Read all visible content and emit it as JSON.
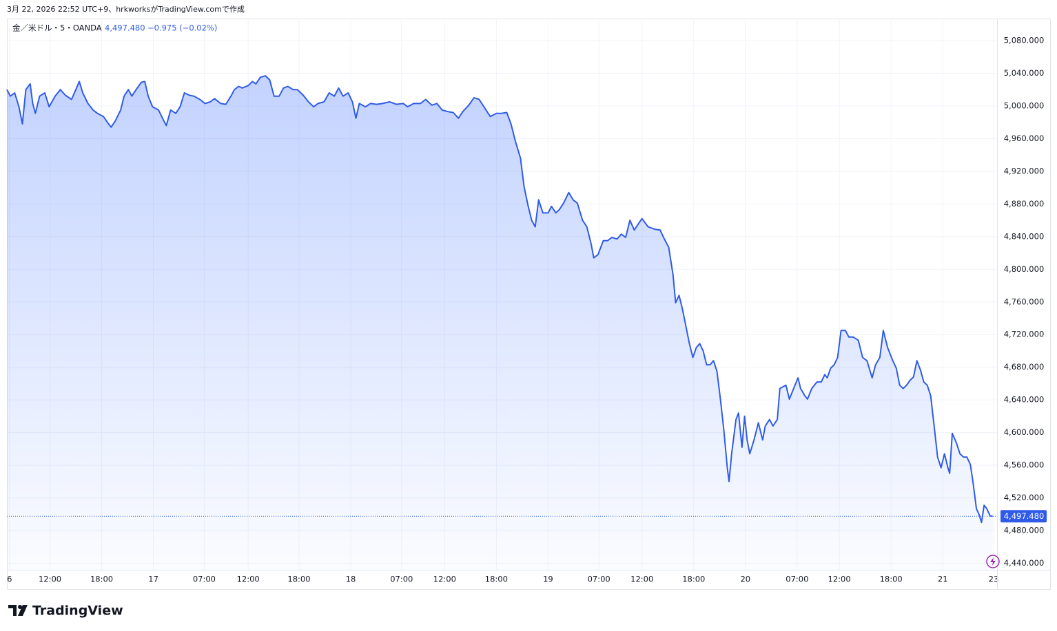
{
  "header": {
    "created": "3月 22, 2026 22:52 UTC+9、hrkworksがTradingView.comで作成"
  },
  "brand": "TradingView",
  "chart_data": {
    "type": "area",
    "title": "金／米ドル・5・OANDA",
    "last_price": {
      "value": 4497.48,
      "label": "4,497.480"
    },
    "change": "−0.975 (−0.02%)",
    "color": "#2f5be8",
    "grid": true,
    "xlim": [
      -0.3,
      114.6
    ],
    "xticks": [
      {
        "value": 0,
        "label": "6"
      },
      {
        "value": 4.7,
        "label": "12:00"
      },
      {
        "value": 10.7,
        "label": "18:00"
      },
      {
        "value": 16.7,
        "label": "17"
      },
      {
        "value": 22.6,
        "label": "07:00"
      },
      {
        "value": 27.7,
        "label": "12:00"
      },
      {
        "value": 33.6,
        "label": "18:00"
      },
      {
        "value": 39.6,
        "label": "18"
      },
      {
        "value": 45.5,
        "label": "07:00"
      },
      {
        "value": 50.5,
        "label": "12:00"
      },
      {
        "value": 56.5,
        "label": "18:00"
      },
      {
        "value": 62.5,
        "label": "19"
      },
      {
        "value": 68.4,
        "label": "07:00"
      },
      {
        "value": 73.4,
        "label": "12:00"
      },
      {
        "value": 79.4,
        "label": "18:00"
      },
      {
        "value": 85.4,
        "label": "20"
      },
      {
        "value": 91.4,
        "label": "07:00"
      },
      {
        "value": 96.3,
        "label": "12:00"
      },
      {
        "value": 102.3,
        "label": "18:00"
      },
      {
        "value": 108.3,
        "label": "21"
      },
      {
        "value": 114.2,
        "label": "23"
      }
    ],
    "ylim": [
      4432,
      5107
    ],
    "yticks": [
      {
        "value": 4440,
        "label": "4,440.000"
      },
      {
        "value": 4480,
        "label": "4,480.000"
      },
      {
        "value": 4520,
        "label": "4,520.000"
      },
      {
        "value": 4560,
        "label": "4,560.000"
      },
      {
        "value": 4600,
        "label": "4,600.000"
      },
      {
        "value": 4640,
        "label": "4,640.000"
      },
      {
        "value": 4680,
        "label": "4,680.000"
      },
      {
        "value": 4720,
        "label": "4,720.000"
      },
      {
        "value": 4760,
        "label": "4,760.000"
      },
      {
        "value": 4800,
        "label": "4,800.000"
      },
      {
        "value": 4840,
        "label": "4,840.000"
      },
      {
        "value": 4880,
        "label": "4,880.000"
      },
      {
        "value": 4920,
        "label": "4,920.000"
      },
      {
        "value": 4960,
        "label": "4,960.000"
      },
      {
        "value": 5000,
        "label": "5,000.000"
      },
      {
        "value": 5040,
        "label": "5,040.000"
      },
      {
        "value": 5080,
        "label": "5,080.000"
      }
    ],
    "x": [
      -0.3,
      0.1,
      0.6,
      1.1,
      1.5,
      1.9,
      2.4,
      2.7,
      3.0,
      3.5,
      4.1,
      4.6,
      5.3,
      5.9,
      6.5,
      7.2,
      7.7,
      8.1,
      8.5,
      9.1,
      9.7,
      10.2,
      10.9,
      11.5,
      11.8,
      12.3,
      12.9,
      13.3,
      13.8,
      14.2,
      14.7,
      15.3,
      15.7,
      16.1,
      16.6,
      17.3,
      17.9,
      18.2,
      18.7,
      19.3,
      19.8,
      20.3,
      20.9,
      21.4,
      22.1,
      22.7,
      23.3,
      23.8,
      24.5,
      25.1,
      25.7,
      26.1,
      26.6,
      27.0,
      27.7,
      28.2,
      28.6,
      29.1,
      29.7,
      30.2,
      30.7,
      31.3,
      31.8,
      32.3,
      32.9,
      33.4,
      34.1,
      34.7,
      35.3,
      35.8,
      36.5,
      37.1,
      37.7,
      38.2,
      38.7,
      39.3,
      39.8,
      40.2,
      40.6,
      41.3,
      41.9,
      42.6,
      43.3,
      44.1,
      44.9,
      45.7,
      46.2,
      46.9,
      47.7,
      48.3,
      49.0,
      49.6,
      50.2,
      50.9,
      51.5,
      52.1,
      52.6,
      53.3,
      53.9,
      54.5,
      55.3,
      55.8,
      56.5,
      57.1,
      57.7,
      58.2,
      58.7,
      59.3,
      59.7,
      60.2,
      60.6,
      61.0,
      61.4,
      61.9,
      62.5,
      62.9,
      63.4,
      63.8,
      64.3,
      64.9,
      65.4,
      65.9,
      66.5,
      67.0,
      67.5,
      67.8,
      68.3,
      68.9,
      69.4,
      69.9,
      70.5,
      71.0,
      71.5,
      72.0,
      72.5,
      73.0,
      73.4,
      74.1,
      74.9,
      75.5,
      76.0,
      76.5,
      77.0,
      77.3,
      77.7,
      78.1,
      78.5,
      78.9,
      79.3,
      79.7,
      80.1,
      80.5,
      80.9,
      81.3,
      81.7,
      82.1,
      82.5,
      82.9,
      83.3,
      83.5,
      83.8,
      84.3,
      84.6,
      85.0,
      85.3,
      85.6,
      85.9,
      86.4,
      86.9,
      87.4,
      87.7,
      88.2,
      88.6,
      89.1,
      89.4,
      90.1,
      90.5,
      91.0,
      91.5,
      91.8,
      92.3,
      92.6,
      93.1,
      93.7,
      94.2,
      94.6,
      94.9,
      95.3,
      95.7,
      96.1,
      96.5,
      97.0,
      97.4,
      97.9,
      98.5,
      99.0,
      99.5,
      100.1,
      100.5,
      101.0,
      101.4,
      101.9,
      102.5,
      102.9,
      103.3,
      103.7,
      104.1,
      104.5,
      104.9,
      105.3,
      105.7,
      106.1,
      106.5,
      106.9,
      107.3,
      107.7,
      108.1,
      108.5,
      108.9,
      109.1,
      109.4,
      109.9,
      110.3,
      110.7,
      111.1,
      111.5,
      111.8,
      112.2,
      112.5,
      112.8,
      113.1,
      113.4,
      113.8,
      114.1
    ],
    "values": [
      5020,
      5012,
      5016,
      4999,
      4978,
      5020,
      5027,
      5003,
      4991,
      5012,
      5016,
      4999,
      5012,
      5020,
      5013,
      5008,
      5020,
      5030,
      5016,
      5003,
      4995,
      4991,
      4987,
      4978,
      4974,
      4982,
      4995,
      5012,
      5020,
      5012,
      5020,
      5029,
      5030,
      5012,
      4999,
      4995,
      4982,
      4976,
      4995,
      4991,
      4999,
      5016,
      5013,
      5012,
      5008,
      5003,
      5005,
      5009,
      5003,
      5002,
      5012,
      5020,
      5024,
      5022,
      5025,
      5030,
      5027,
      5035,
      5037,
      5032,
      5012,
      5012,
      5022,
      5024,
      5020,
      5020,
      5013,
      5005,
      4999,
      5003,
      5005,
      5016,
      5012,
      5022,
      5012,
      5016,
      5005,
      4985,
      5003,
      4999,
      5003,
      5002,
      5003,
      5005,
      5002,
      5003,
      4999,
      5003,
      5003,
      5008,
      5001,
      5003,
      4995,
      4993,
      4992,
      4985,
      4993,
      5001,
      5010,
      5008,
      4995,
      4987,
      4991,
      4991,
      4992,
      4978,
      4957,
      4936,
      4902,
      4877,
      4860,
      4852,
      4885,
      4869,
      4869,
      4877,
      4869,
      4873,
      4881,
      4894,
      4885,
      4881,
      4860,
      4852,
      4831,
      4814,
      4818,
      4835,
      4835,
      4839,
      4837,
      4843,
      4839,
      4860,
      4848,
      4856,
      4862,
      4852,
      4849,
      4848,
      4837,
      4827,
      4793,
      4759,
      4768,
      4751,
      4730,
      4709,
      4692,
      4704,
      4709,
      4700,
      4683,
      4683,
      4688,
      4675,
      4641,
      4603,
      4557,
      4540,
      4574,
      4616,
      4624,
      4582,
      4620,
      4591,
      4574,
      4591,
      4612,
      4591,
      4608,
      4616,
      4608,
      4616,
      4654,
      4658,
      4641,
      4654,
      4667,
      4654,
      4645,
      4641,
      4654,
      4662,
      4662,
      4671,
      4667,
      4679,
      4683,
      4692,
      4725,
      4725,
      4717,
      4717,
      4713,
      4692,
      4688,
      4667,
      4683,
      4692,
      4725,
      4704,
      4688,
      4679,
      4658,
      4654,
      4658,
      4664,
      4668,
      4688,
      4677,
      4662,
      4658,
      4645,
      4608,
      4570,
      4557,
      4574,
      4557,
      4550,
      4599,
      4587,
      4574,
      4570,
      4570,
      4561,
      4540,
      4507,
      4500,
      4490,
      4511,
      4507,
      4498,
      4497.48
    ]
  }
}
